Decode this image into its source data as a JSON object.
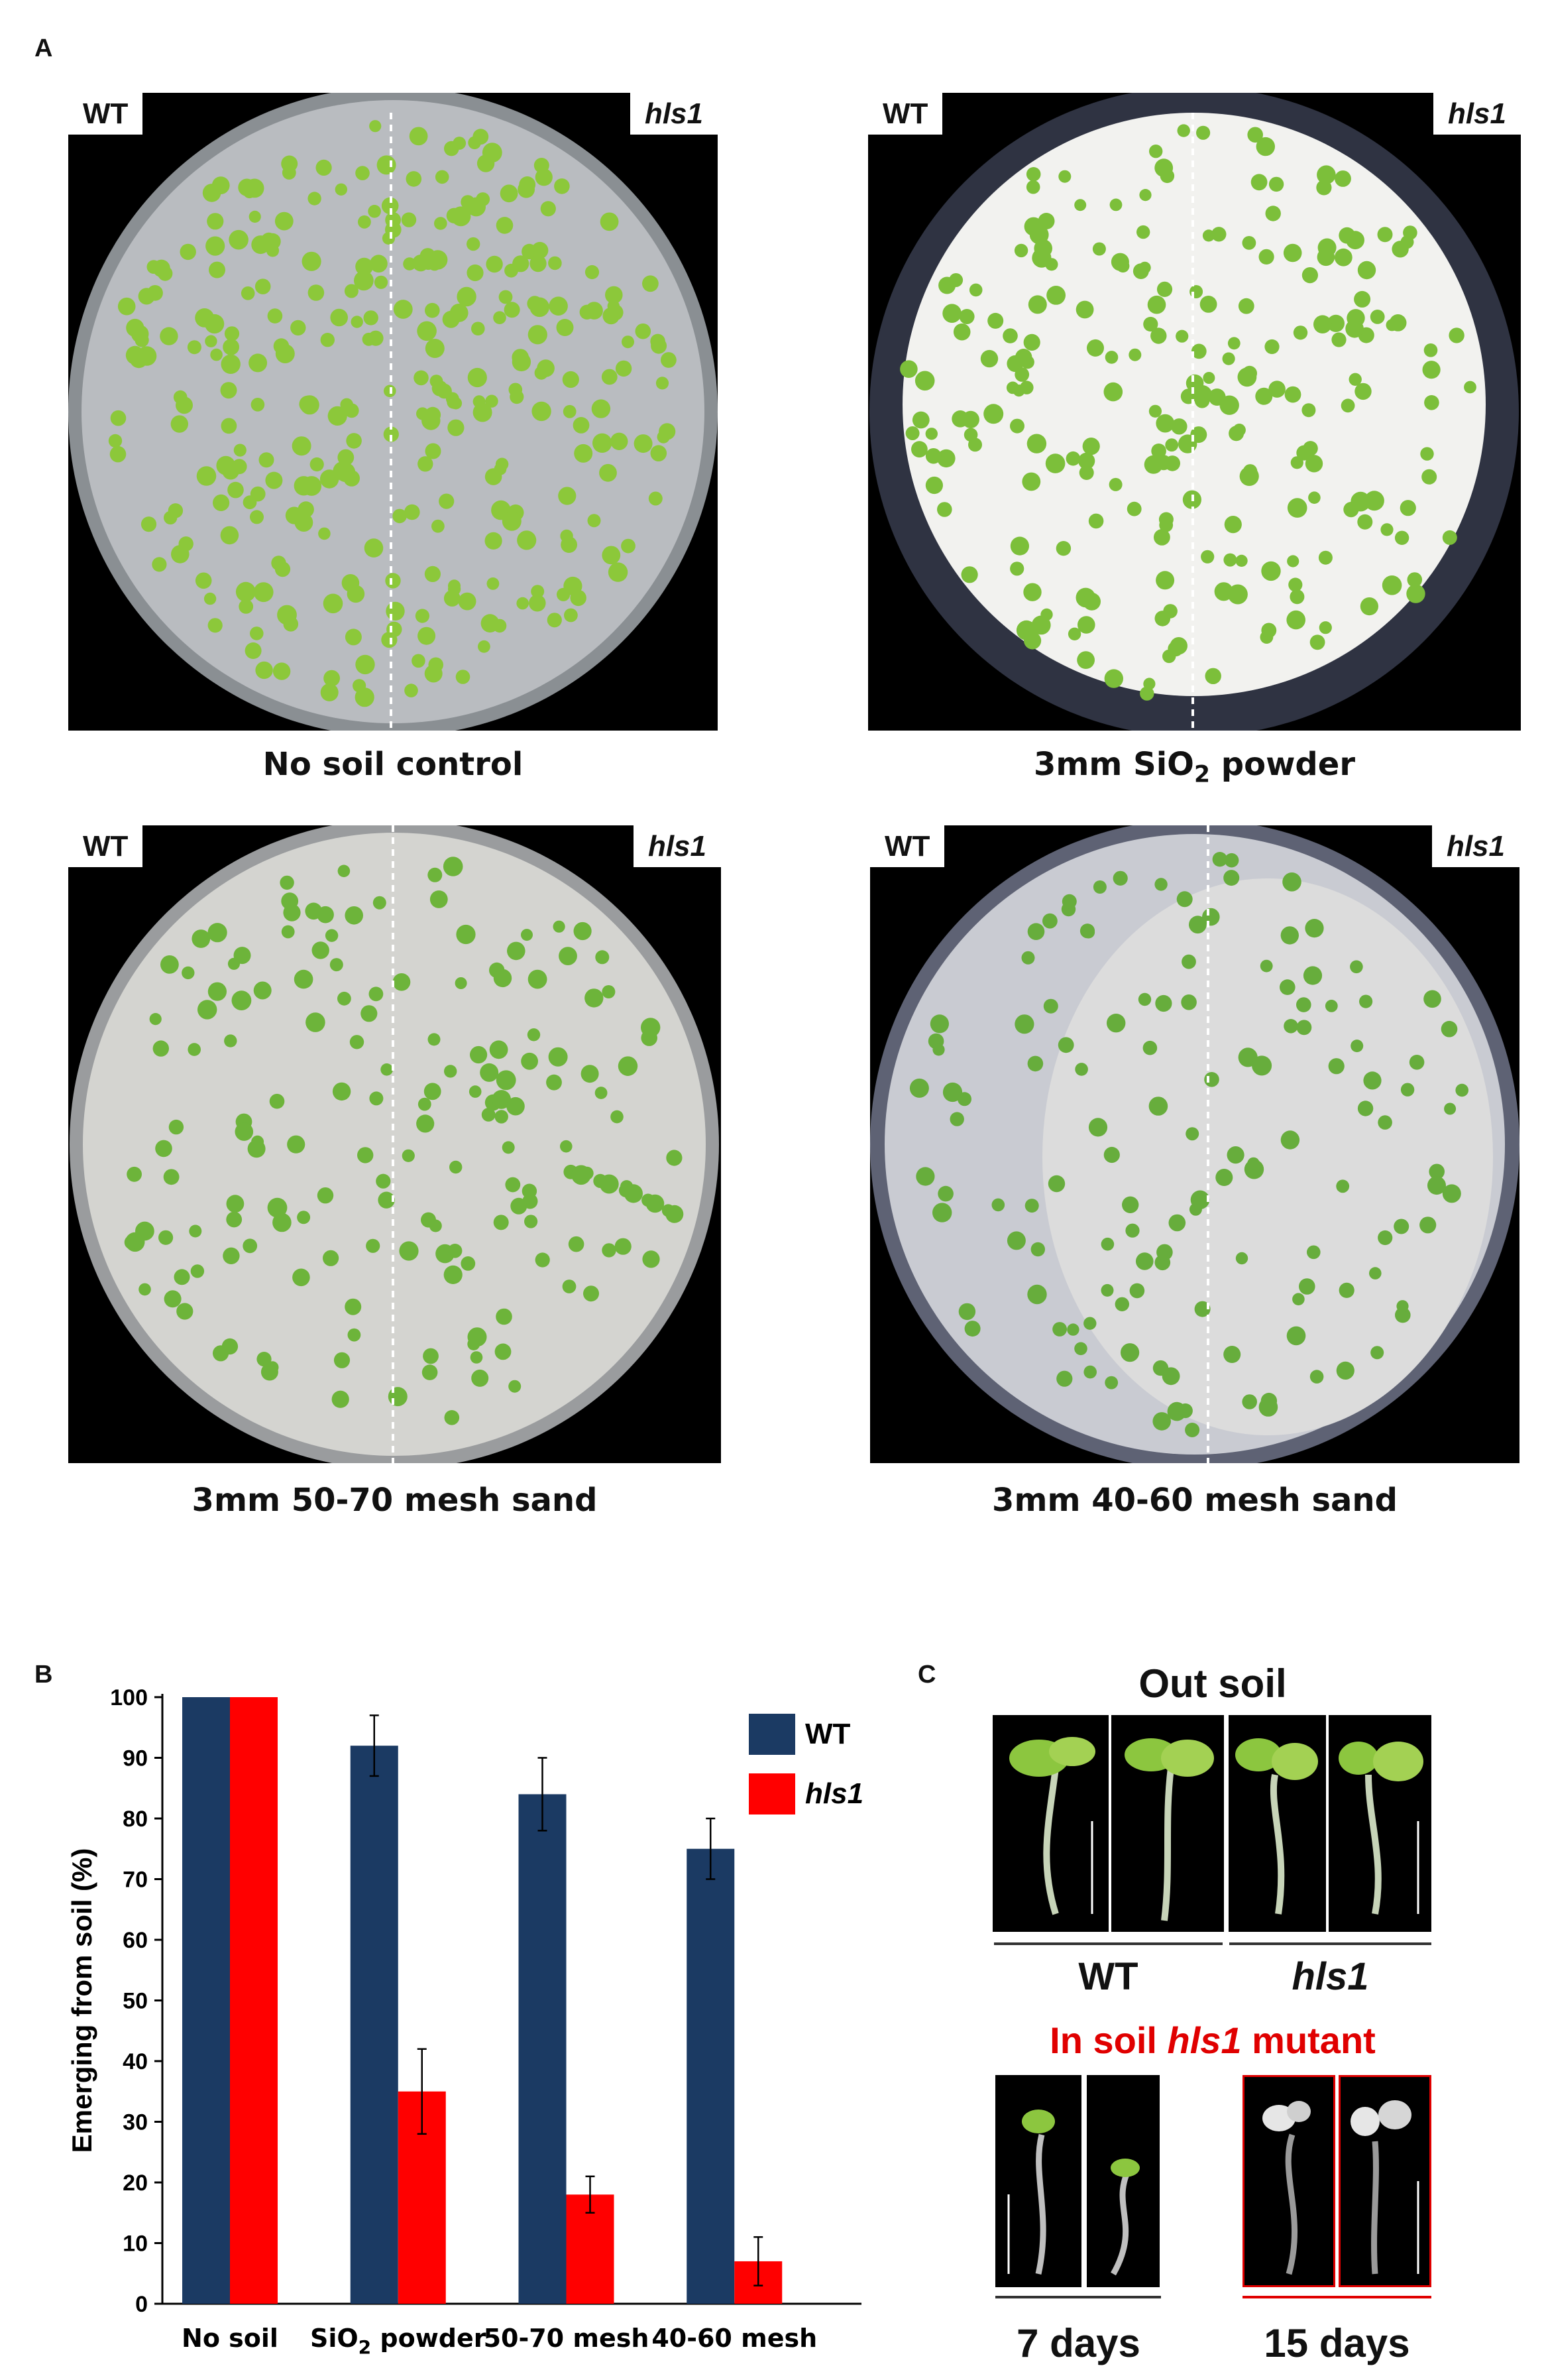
{
  "panels": {
    "a": "A",
    "b": "B",
    "c": "C"
  },
  "panel_a": {
    "wt_label": "WT",
    "mutant_label": "hls1",
    "plates": [
      {
        "caption_text": "No soil control"
      },
      {
        "caption_pre": "3mm SiO",
        "caption_sub": "2",
        "caption_post": " powder"
      },
      {
        "caption_text": "3mm 50-70 mesh sand"
      },
      {
        "caption_text": "3mm 40-60 mesh sand"
      }
    ]
  },
  "chart_data": {
    "type": "bar",
    "ylabel": "Emerging from soil (%)",
    "ylim": [
      0,
      100
    ],
    "yticks": [
      0,
      10,
      20,
      30,
      40,
      50,
      60,
      70,
      80,
      90,
      100
    ],
    "categories": [
      "No soil",
      "SiO2 powder",
      "50-70 mesh",
      "40-60 mesh"
    ],
    "category_display": [
      {
        "pre": "No soil",
        "sub": "",
        "post": ""
      },
      {
        "pre": "SiO",
        "sub": "2",
        "post": " powder"
      },
      {
        "pre": "50-70 mesh",
        "sub": "",
        "post": ""
      },
      {
        "pre": "40-60 mesh",
        "sub": "",
        "post": ""
      }
    ],
    "series": [
      {
        "name": "WT",
        "color": "#1b3a63",
        "values": [
          100,
          92,
          84,
          75
        ],
        "errors": [
          0,
          5,
          6,
          5
        ]
      },
      {
        "name": "hls1",
        "color": "#ff0000",
        "values": [
          100,
          35,
          18,
          7
        ],
        "errors": [
          0,
          7,
          3,
          4
        ]
      }
    ],
    "legend_position": "top-right",
    "grid": false
  },
  "panel_c": {
    "out_soil_title": "Out soil",
    "wt_label": "WT",
    "mutant_label": "hls1",
    "in_soil_pre": "In soil ",
    "in_soil_mid": "hls1",
    "in_soil_post": " mutant",
    "in_soil_color": "#e00000",
    "day7_label": "7 days",
    "day15_label": "15 days"
  }
}
